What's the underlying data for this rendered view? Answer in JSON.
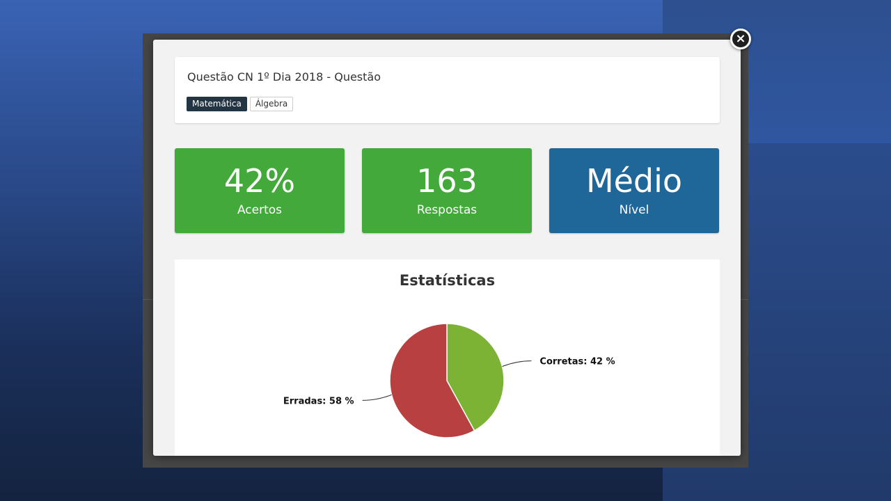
{
  "modal": {
    "close_label": "×",
    "question_title": "Questão CN 1º Dia 2018 - Questão",
    "tags": [
      {
        "label": "Matemática",
        "style": "dark"
      },
      {
        "label": "Álgebra",
        "style": "light"
      }
    ]
  },
  "stats": [
    {
      "value": "42%",
      "label": "Acertos",
      "color": "#42a93a"
    },
    {
      "value": "163",
      "label": "Respostas",
      "color": "#42a93a"
    },
    {
      "value": "Médio",
      "label": "Nível",
      "color": "#1f6699"
    }
  ],
  "chart_data": {
    "type": "pie",
    "title": "Estatísticas",
    "slices": [
      {
        "name": "Corretas",
        "value": 42,
        "label": "Corretas: 42 %",
        "color": "#7cb334"
      },
      {
        "name": "Erradas",
        "value": 58,
        "label": "Erradas: 58 %",
        "color": "#b84040"
      }
    ]
  }
}
